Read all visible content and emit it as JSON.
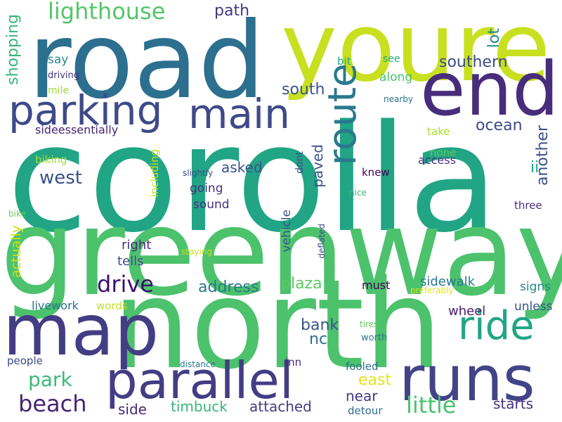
{
  "words": [
    {
      "text": "corolla",
      "color": "#21a585"
    },
    {
      "text": "greenway",
      "color": "#4cc26c"
    },
    {
      "text": "north",
      "color": "#4cc26c"
    },
    {
      "text": "road",
      "color": "#2c6f8e"
    },
    {
      "text": "youre",
      "color": "#c8e020"
    },
    {
      "text": "end",
      "color": "#472d7b"
    },
    {
      "text": "map",
      "color": "#433d84"
    },
    {
      "text": "runs",
      "color": "#414487"
    },
    {
      "text": "parallel",
      "color": "#433d84"
    },
    {
      "text": "parking",
      "color": "#3e4a89"
    },
    {
      "text": "main",
      "color": "#3e4a89"
    },
    {
      "text": "route",
      "color": "#2a788e"
    },
    {
      "text": "ride",
      "color": "#21a585"
    },
    {
      "text": "lighthouse",
      "color": "#54c568"
    },
    {
      "text": "little",
      "color": "#4ac16d"
    },
    {
      "text": "drive",
      "color": "#3b0f70"
    },
    {
      "text": "beach",
      "color": "#482374"
    },
    {
      "text": "park",
      "color": "#3aba76"
    },
    {
      "text": "west",
      "color": "#3b528b"
    },
    {
      "text": "southern",
      "color": "#3e4a89"
    },
    {
      "text": "ocean",
      "color": "#3e4a89"
    },
    {
      "text": "path",
      "color": "#453781"
    },
    {
      "text": "south",
      "color": "#3b528b"
    },
    {
      "text": "shopping",
      "color": "#35b779"
    },
    {
      "text": "sideessentially",
      "color": "#482677"
    },
    {
      "text": "address",
      "color": "#2a788e"
    },
    {
      "text": "plaza",
      "color": "#5ec962"
    },
    {
      "text": "another",
      "color": "#3b528b"
    },
    {
      "text": "lot",
      "color": "#24868e"
    },
    {
      "text": "paved",
      "color": "#3b528b"
    },
    {
      "text": "knew",
      "color": "#440154"
    },
    {
      "text": "asked",
      "color": "#3b528b"
    },
    {
      "text": "going",
      "color": "#46327e"
    },
    {
      "text": "sound",
      "color": "#46327e"
    },
    {
      "text": "right",
      "color": "#472d7b"
    },
    {
      "text": "tells",
      "color": "#3e4a89"
    },
    {
      "text": "vehicle",
      "color": "#3b528b"
    },
    {
      "text": "actually",
      "color": "#d0e11c"
    },
    {
      "text": "livework",
      "color": "#2c718e"
    },
    {
      "text": "words",
      "color": "#c2df23"
    },
    {
      "text": "bank",
      "color": "#3b528b"
    },
    {
      "text": "nc",
      "color": "#2c718e"
    },
    {
      "text": "sidewalk",
      "color": "#2a788e"
    },
    {
      "text": "signs",
      "color": "#24868e"
    },
    {
      "text": "wheel",
      "color": "#481c6e"
    },
    {
      "text": "unless",
      "color": "#3b528b"
    },
    {
      "text": "must",
      "color": "#440154"
    },
    {
      "text": "east",
      "color": "#e2e418"
    },
    {
      "text": "near",
      "color": "#443983"
    },
    {
      "text": "side",
      "color": "#482677"
    },
    {
      "text": "timbuck",
      "color": "#35b779"
    },
    {
      "text": "attached",
      "color": "#433d84"
    },
    {
      "text": "starts",
      "color": "#46327e"
    },
    {
      "text": "detour",
      "color": "#2e6e8e"
    },
    {
      "text": "fooled",
      "color": "#2e6e8e"
    },
    {
      "text": "inn",
      "color": "#482677"
    },
    {
      "text": "people",
      "color": "#3e4a89"
    },
    {
      "text": "ii",
      "color": "#22a785"
    },
    {
      "text": "three",
      "color": "#472d7b"
    },
    {
      "text": "access",
      "color": "#46327e"
    },
    {
      "text": "none",
      "color": "#5ec962"
    },
    {
      "text": "take",
      "color": "#aadc32"
    },
    {
      "text": "see",
      "color": "#22a785"
    },
    {
      "text": "along",
      "color": "#4cc26c"
    },
    {
      "text": "bit",
      "color": "#21a585"
    },
    {
      "text": "say",
      "color": "#24868e"
    },
    {
      "text": "mile",
      "color": "#9bd93c"
    },
    {
      "text": "biking",
      "color": "#a5db36"
    },
    {
      "text": "including",
      "color": "#c8e020"
    },
    {
      "text": "dont",
      "color": "#3e4a89"
    },
    {
      "text": "driving",
      "color": "#46327e"
    },
    {
      "text": "nearby",
      "color": "#2c718e"
    },
    {
      "text": "slightly",
      "color": "#3e4a89"
    },
    {
      "text": "nice",
      "color": "#35b779"
    },
    {
      "text": "staying",
      "color": "#c8e020"
    },
    {
      "text": "deflated",
      "color": "#3e4a89"
    },
    {
      "text": "preferably",
      "color": "#e2e418"
    },
    {
      "text": "tires",
      "color": "#5ec962"
    },
    {
      "text": "worth",
      "color": "#2c718e"
    },
    {
      "text": "distance",
      "color": "#2a788e"
    },
    {
      "text": "bike",
      "color": "#6ccd5a"
    }
  ]
}
